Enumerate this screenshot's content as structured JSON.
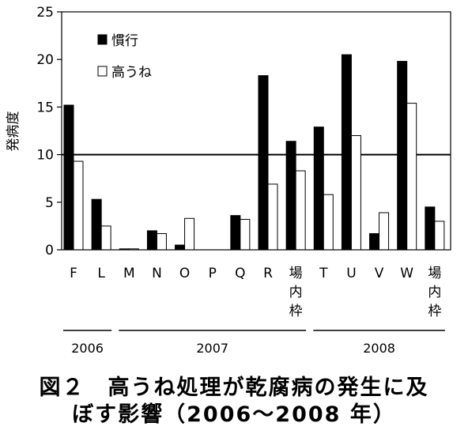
{
  "chart_data": {
    "type": "bar",
    "ylabel": "発病度",
    "ylim": [
      0,
      25
    ],
    "yticks": [
      0,
      5,
      10,
      15,
      20,
      25
    ],
    "reference_line": 10,
    "categories": [
      "F",
      "L",
      "M",
      "N",
      "O",
      "P",
      "Q",
      "R",
      "場内枠",
      "T",
      "U",
      "V",
      "W",
      "場内枠"
    ],
    "series": [
      {
        "name": "慣行",
        "color": "#000000",
        "values": [
          15.2,
          5.3,
          0.1,
          2.0,
          0.5,
          0,
          3.6,
          18.3,
          11.4,
          12.9,
          20.5,
          1.7,
          19.8,
          4.5
        ]
      },
      {
        "name": "高うね",
        "color": "#ffffff",
        "values": [
          9.3,
          2.5,
          0.1,
          1.7,
          3.3,
          0,
          3.2,
          6.9,
          8.3,
          5.8,
          12.0,
          3.9,
          15.4,
          3.0
        ]
      }
    ],
    "groups": [
      {
        "label": "2006",
        "from": 0,
        "to": 1
      },
      {
        "label": "2007",
        "from": 2,
        "to": 8
      },
      {
        "label": "2008",
        "from": 9,
        "to": 13
      }
    ],
    "legend_position": "top-left"
  },
  "caption": {
    "line1": "図２　高うね処理が乾腐病の発生に及",
    "line2": "ぼす影響（2006～2008 年）"
  }
}
